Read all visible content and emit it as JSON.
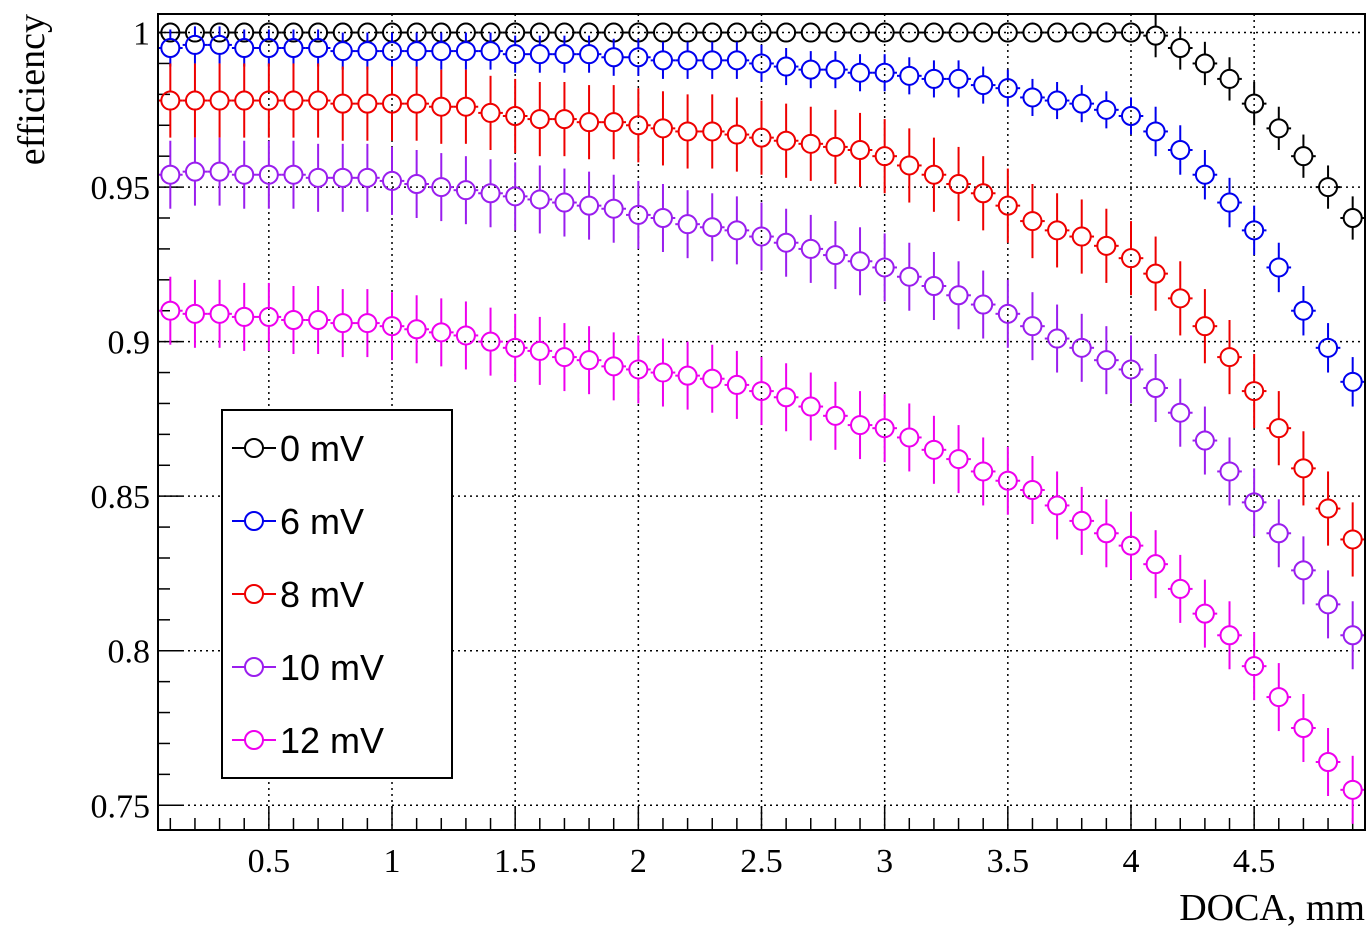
{
  "chart_data": {
    "type": "scatter",
    "title": "",
    "xlabel": "DOCA, mm",
    "ylabel": "efficiency",
    "xlim": [
      0.05,
      4.95
    ],
    "ylim": [
      0.742,
      1.006
    ],
    "grid": true,
    "legend_position": "bottom-left",
    "x_ticks": [
      0.5,
      1,
      1.5,
      2,
      2.5,
      3,
      3.5,
      4,
      4.5
    ],
    "x_tick_labels": [
      "0.5",
      "1",
      "1.5",
      "2",
      "2.5",
      "3",
      "3.5",
      "4",
      "4.5"
    ],
    "y_ticks": [
      0.75,
      0.8,
      0.85,
      0.9,
      0.95,
      1
    ],
    "y_tick_labels": [
      "0.75",
      "0.8",
      "0.85",
      "0.9",
      "0.95",
      "1"
    ],
    "x": [
      0.1,
      0.2,
      0.3,
      0.4,
      0.5,
      0.6,
      0.7,
      0.8,
      0.9,
      1.0,
      1.1,
      1.2,
      1.3,
      1.4,
      1.5,
      1.6,
      1.7,
      1.8,
      1.9,
      2.0,
      2.1,
      2.2,
      2.3,
      2.4,
      2.5,
      2.6,
      2.7,
      2.8,
      2.9,
      3.0,
      3.1,
      3.2,
      3.3,
      3.4,
      3.5,
      3.6,
      3.7,
      3.8,
      3.9,
      4.0,
      4.1,
      4.2,
      4.3,
      4.4,
      4.5,
      4.6,
      4.7,
      4.8,
      4.9
    ],
    "series": [
      {
        "name": "0 mV",
        "color": "#000000",
        "values": [
          1.0,
          1.0,
          1.0,
          1.0,
          1.0,
          1.0,
          1.0,
          1.0,
          1.0,
          1.0,
          1.0,
          1.0,
          1.0,
          1.0,
          1.0,
          1.0,
          1.0,
          1.0,
          1.0,
          1.0,
          1.0,
          1.0,
          1.0,
          1.0,
          1.0,
          1.0,
          1.0,
          1.0,
          1.0,
          1.0,
          1.0,
          1.0,
          1.0,
          1.0,
          1.0,
          1.0,
          1.0,
          1.0,
          1.0,
          1.0,
          0.999,
          0.995,
          0.99,
          0.985,
          0.977,
          0.969,
          0.96,
          0.95,
          0.94
        ],
        "errors": [
          0.001,
          0.001,
          0.001,
          0.001,
          0.001,
          0.001,
          0.001,
          0.001,
          0.001,
          0.001,
          0.001,
          0.001,
          0.001,
          0.001,
          0.001,
          0.001,
          0.001,
          0.001,
          0.001,
          0.001,
          0.001,
          0.001,
          0.001,
          0.001,
          0.001,
          0.001,
          0.001,
          0.001,
          0.001,
          0.001,
          0.001,
          0.001,
          0.001,
          0.001,
          0.001,
          0.001,
          0.001,
          0.001,
          0.001,
          0.001,
          0.007,
          0.007,
          0.007,
          0.007,
          0.007,
          0.007,
          0.007,
          0.007,
          0.007
        ]
      },
      {
        "name": "6 mV",
        "color": "#0000ee",
        "values": [
          0.995,
          0.996,
          0.996,
          0.995,
          0.995,
          0.995,
          0.995,
          0.994,
          0.994,
          0.994,
          0.994,
          0.994,
          0.994,
          0.994,
          0.993,
          0.993,
          0.993,
          0.993,
          0.992,
          0.992,
          0.991,
          0.991,
          0.991,
          0.991,
          0.99,
          0.989,
          0.988,
          0.988,
          0.987,
          0.987,
          0.986,
          0.985,
          0.985,
          0.983,
          0.982,
          0.979,
          0.978,
          0.977,
          0.975,
          0.973,
          0.968,
          0.962,
          0.954,
          0.945,
          0.936,
          0.924,
          0.91,
          0.898,
          0.887
        ],
        "errors": [
          0.006,
          0.006,
          0.006,
          0.006,
          0.006,
          0.006,
          0.006,
          0.006,
          0.006,
          0.006,
          0.006,
          0.006,
          0.006,
          0.006,
          0.006,
          0.006,
          0.006,
          0.006,
          0.006,
          0.006,
          0.006,
          0.006,
          0.006,
          0.006,
          0.006,
          0.006,
          0.006,
          0.006,
          0.006,
          0.006,
          0.006,
          0.006,
          0.006,
          0.006,
          0.006,
          0.006,
          0.006,
          0.006,
          0.006,
          0.006,
          0.008,
          0.008,
          0.008,
          0.008,
          0.008,
          0.008,
          0.008,
          0.008,
          0.008
        ]
      },
      {
        "name": "8 mV",
        "color": "#ee0000",
        "values": [
          0.978,
          0.978,
          0.978,
          0.978,
          0.978,
          0.978,
          0.978,
          0.977,
          0.977,
          0.977,
          0.977,
          0.976,
          0.976,
          0.974,
          0.973,
          0.972,
          0.972,
          0.971,
          0.971,
          0.97,
          0.969,
          0.968,
          0.968,
          0.967,
          0.966,
          0.965,
          0.964,
          0.963,
          0.962,
          0.96,
          0.957,
          0.954,
          0.951,
          0.948,
          0.944,
          0.939,
          0.936,
          0.934,
          0.931,
          0.927,
          0.922,
          0.914,
          0.905,
          0.895,
          0.884,
          0.872,
          0.859,
          0.846,
          0.836
        ],
        "errors": [
          0.012,
          0.012,
          0.012,
          0.012,
          0.012,
          0.012,
          0.012,
          0.012,
          0.012,
          0.012,
          0.012,
          0.012,
          0.012,
          0.012,
          0.012,
          0.012,
          0.012,
          0.012,
          0.012,
          0.012,
          0.012,
          0.012,
          0.012,
          0.012,
          0.012,
          0.012,
          0.012,
          0.012,
          0.012,
          0.012,
          0.012,
          0.012,
          0.012,
          0.012,
          0.012,
          0.012,
          0.012,
          0.012,
          0.012,
          0.012,
          0.012,
          0.012,
          0.012,
          0.012,
          0.012,
          0.012,
          0.012,
          0.012,
          0.012
        ]
      },
      {
        "name": "10 mV",
        "color": "#9a1eee",
        "values": [
          0.954,
          0.955,
          0.955,
          0.954,
          0.954,
          0.954,
          0.953,
          0.953,
          0.953,
          0.952,
          0.951,
          0.95,
          0.949,
          0.948,
          0.947,
          0.946,
          0.945,
          0.944,
          0.943,
          0.941,
          0.94,
          0.938,
          0.937,
          0.936,
          0.934,
          0.932,
          0.93,
          0.928,
          0.926,
          0.924,
          0.921,
          0.918,
          0.915,
          0.912,
          0.909,
          0.905,
          0.901,
          0.898,
          0.894,
          0.891,
          0.885,
          0.877,
          0.868,
          0.858,
          0.848,
          0.838,
          0.826,
          0.815,
          0.805
        ],
        "errors": [
          0.011,
          0.011,
          0.011,
          0.011,
          0.011,
          0.011,
          0.011,
          0.011,
          0.011,
          0.011,
          0.011,
          0.011,
          0.011,
          0.011,
          0.011,
          0.011,
          0.011,
          0.011,
          0.011,
          0.011,
          0.011,
          0.011,
          0.011,
          0.011,
          0.011,
          0.011,
          0.011,
          0.011,
          0.011,
          0.011,
          0.011,
          0.011,
          0.011,
          0.011,
          0.011,
          0.011,
          0.011,
          0.011,
          0.011,
          0.011,
          0.011,
          0.011,
          0.011,
          0.011,
          0.011,
          0.011,
          0.011,
          0.011,
          0.011
        ]
      },
      {
        "name": "12 mV",
        "color": "#ee00ee",
        "values": [
          0.91,
          0.909,
          0.909,
          0.908,
          0.908,
          0.907,
          0.907,
          0.906,
          0.906,
          0.905,
          0.904,
          0.903,
          0.902,
          0.9,
          0.898,
          0.897,
          0.895,
          0.894,
          0.892,
          0.891,
          0.89,
          0.889,
          0.888,
          0.886,
          0.884,
          0.882,
          0.879,
          0.876,
          0.873,
          0.872,
          0.869,
          0.865,
          0.862,
          0.858,
          0.855,
          0.852,
          0.847,
          0.842,
          0.838,
          0.834,
          0.828,
          0.82,
          0.812,
          0.805,
          0.795,
          0.785,
          0.775,
          0.764,
          0.755
        ],
        "errors": [
          0.011,
          0.011,
          0.011,
          0.011,
          0.011,
          0.011,
          0.011,
          0.011,
          0.011,
          0.011,
          0.011,
          0.011,
          0.011,
          0.011,
          0.011,
          0.011,
          0.011,
          0.011,
          0.011,
          0.011,
          0.011,
          0.011,
          0.011,
          0.011,
          0.011,
          0.011,
          0.011,
          0.011,
          0.011,
          0.011,
          0.011,
          0.011,
          0.011,
          0.011,
          0.011,
          0.011,
          0.011,
          0.011,
          0.011,
          0.011,
          0.011,
          0.011,
          0.011,
          0.011,
          0.011,
          0.011,
          0.011,
          0.011,
          0.011
        ]
      }
    ]
  }
}
